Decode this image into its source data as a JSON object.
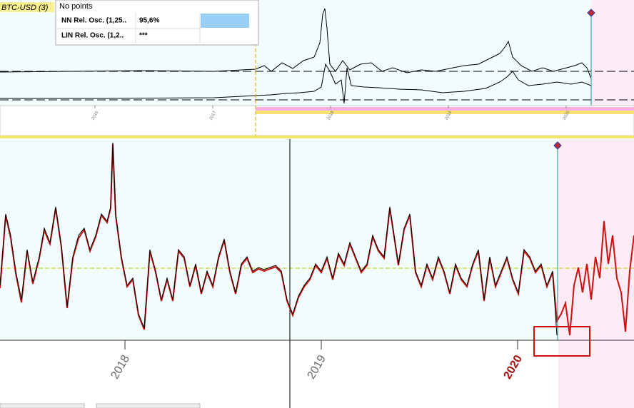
{
  "top_panel": {
    "symbol": "BTC-USD (3)",
    "status": "No points",
    "legend": {
      "rows": [
        [
          "NN Rel. Osc. (1,25..",
          "95,6%"
        ],
        [
          "LIN Rel. Osc. (1,2..",
          "***"
        ]
      ]
    },
    "x_labels": [
      "2016",
      "2017",
      "2018",
      "2019",
      "2020"
    ]
  },
  "bottom_panel": {
    "x_labels": [
      "2018",
      "2019",
      "2020"
    ]
  }
}
